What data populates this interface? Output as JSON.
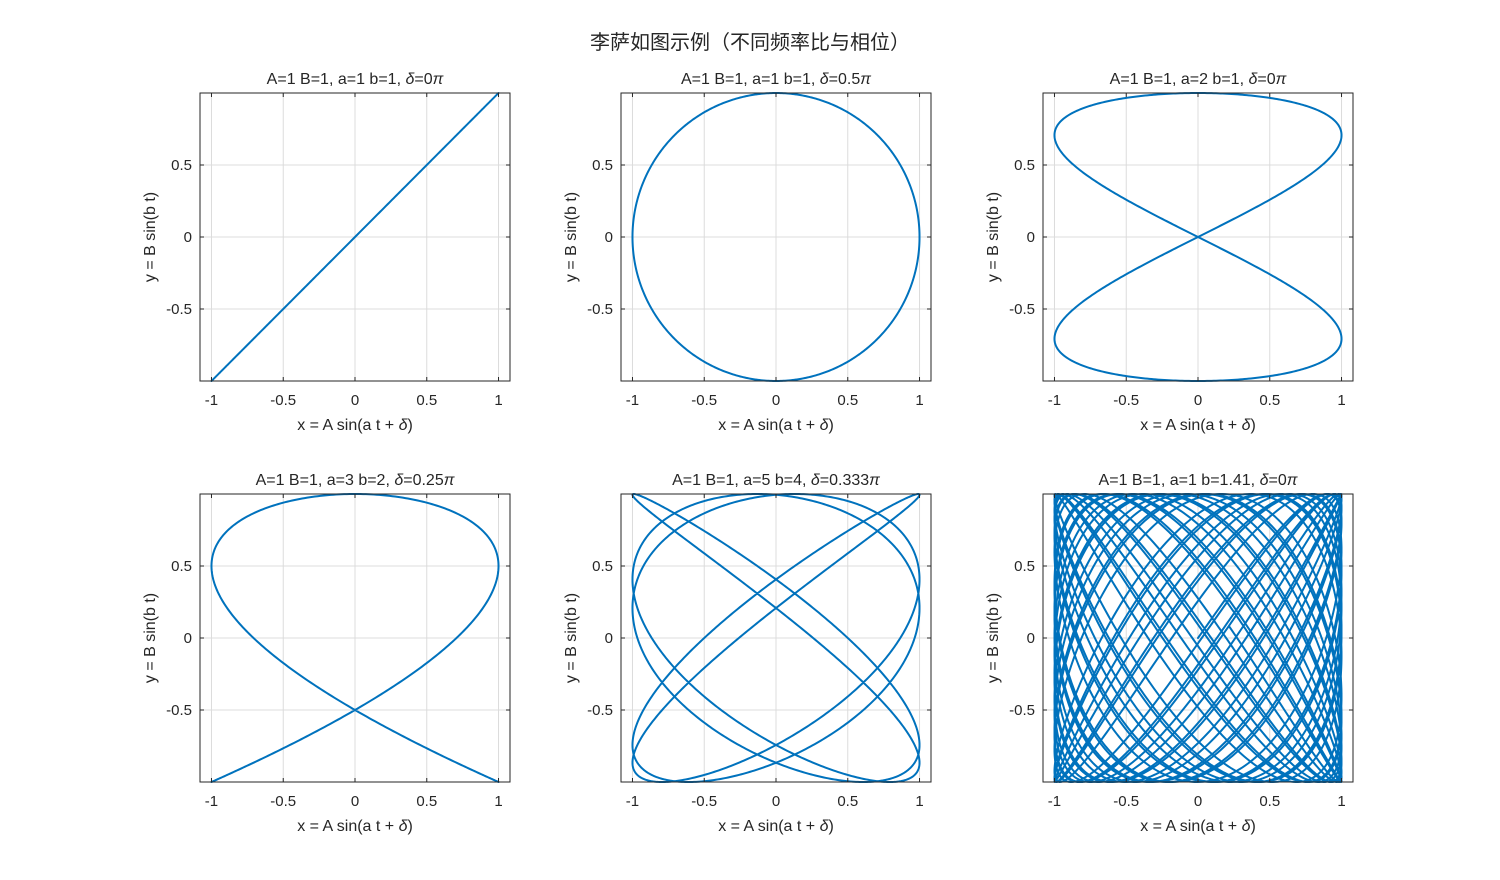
{
  "figure": {
    "title": "李萨如图示例（不同频率比与相位）",
    "line_color": "#0072BD"
  },
  "chart_data": [
    {
      "type": "line",
      "title": "A=1 B=1, a=1 b=1, δ=0π",
      "title_parts": [
        "A=1 B=1, a=1 b=1, ",
        "δ",
        "=0",
        "π"
      ],
      "xlabel_parts": [
        "x = A sin(a t + ",
        "δ",
        ")"
      ],
      "ylabel": "y = B sin(b t)",
      "params": {
        "A": 1,
        "B": 1,
        "a": 1,
        "b": 1,
        "delta_over_pi": 0
      },
      "t_range": [
        0,
        6.2832
      ],
      "samples": 600,
      "xlim": [
        -1.08,
        1.08
      ],
      "ylim": [
        -1,
        1
      ],
      "xticks": [
        -1,
        -0.5,
        0,
        0.5,
        1
      ],
      "xtick_labels": [
        "-1",
        "-0.5",
        "0",
        "0.5",
        "1"
      ],
      "yticks": [
        -0.5,
        0,
        0.5
      ],
      "ytick_labels": [
        "-0.5",
        "0",
        "0.5"
      ],
      "grid": true
    },
    {
      "type": "line",
      "title": "A=1 B=1, a=1 b=1, δ=0.5π",
      "title_parts": [
        "A=1 B=1, a=1 b=1, ",
        "δ",
        "=0.5",
        "π"
      ],
      "xlabel_parts": [
        "x = A sin(a t + ",
        "δ",
        ")"
      ],
      "ylabel": "y = B sin(b t)",
      "params": {
        "A": 1,
        "B": 1,
        "a": 1,
        "b": 1,
        "delta_over_pi": 0.5
      },
      "t_range": [
        0,
        6.2832
      ],
      "samples": 600,
      "xlim": [
        -1.08,
        1.08
      ],
      "ylim": [
        -1,
        1
      ],
      "xticks": [
        -1,
        -0.5,
        0,
        0.5,
        1
      ],
      "xtick_labels": [
        "-1",
        "-0.5",
        "0",
        "0.5",
        "1"
      ],
      "yticks": [
        -0.5,
        0,
        0.5
      ],
      "ytick_labels": [
        "-0.5",
        "0",
        "0.5"
      ],
      "grid": true
    },
    {
      "type": "line",
      "title": "A=1 B=1, a=2 b=1, δ=0π",
      "title_parts": [
        "A=1 B=1, a=2 b=1, ",
        "δ",
        "=0",
        "π"
      ],
      "xlabel_parts": [
        "x = A sin(a t + ",
        "δ",
        ")"
      ],
      "ylabel": "y = B sin(b t)",
      "params": {
        "A": 1,
        "B": 1,
        "a": 2,
        "b": 1,
        "delta_over_pi": 0
      },
      "t_range": [
        0,
        6.2832
      ],
      "samples": 800,
      "xlim": [
        -1.08,
        1.08
      ],
      "ylim": [
        -1,
        1
      ],
      "xticks": [
        -1,
        -0.5,
        0,
        0.5,
        1
      ],
      "xtick_labels": [
        "-1",
        "-0.5",
        "0",
        "0.5",
        "1"
      ],
      "yticks": [
        -0.5,
        0,
        0.5
      ],
      "ytick_labels": [
        "-0.5",
        "0",
        "0.5"
      ],
      "grid": true
    },
    {
      "type": "line",
      "title": "A=1 B=1, a=3 b=2, δ=0.25π",
      "title_parts": [
        "A=1 B=1, a=3 b=2, ",
        "δ",
        "=0.25",
        "π"
      ],
      "xlabel_parts": [
        "x = A sin(a t + ",
        "δ",
        ")"
      ],
      "ylabel": "y = B sin(b t)",
      "params": {
        "A": 1,
        "B": 1,
        "a": 3,
        "b": 2,
        "delta_over_pi": 0.25
      },
      "t_range": [
        0,
        6.2832
      ],
      "samples": 1000,
      "xlim": [
        -1.08,
        1.08
      ],
      "ylim": [
        -1,
        1
      ],
      "xticks": [
        -1,
        -0.5,
        0,
        0.5,
        1
      ],
      "xtick_labels": [
        "-1",
        "-0.5",
        "0",
        "0.5",
        "1"
      ],
      "yticks": [
        -0.5,
        0,
        0.5
      ],
      "ytick_labels": [
        "-0.5",
        "0",
        "0.5"
      ],
      "grid": true
    },
    {
      "type": "line",
      "title": "A=1 B=1, a=5 b=4, δ=0.333π",
      "title_parts": [
        "A=1 B=1, a=5 b=4, ",
        "δ",
        "=0.333",
        "π"
      ],
      "xlabel_parts": [
        "x = A sin(a t + ",
        "δ",
        ")"
      ],
      "ylabel": "y = B sin(b t)",
      "params": {
        "A": 1,
        "B": 1,
        "a": 5,
        "b": 4,
        "delta_over_pi": 0.3333
      },
      "t_range": [
        0,
        6.2832
      ],
      "samples": 2000,
      "xlim": [
        -1.08,
        1.08
      ],
      "ylim": [
        -1,
        1
      ],
      "xticks": [
        -1,
        -0.5,
        0,
        0.5,
        1
      ],
      "xtick_labels": [
        "-1",
        "-0.5",
        "0",
        "0.5",
        "1"
      ],
      "yticks": [
        -0.5,
        0,
        0.5
      ],
      "ytick_labels": [
        "-0.5",
        "0",
        "0.5"
      ],
      "grid": true
    },
    {
      "type": "line",
      "title": "A=1 B=1, a=1 b=1.41, δ=0π",
      "title_parts": [
        "A=1 B=1, a=1 b=1.41, ",
        "δ",
        "=0",
        "π"
      ],
      "xlabel_parts": [
        "x = A sin(a t + ",
        "δ",
        ")"
      ],
      "ylabel": "y = B sin(b t)",
      "params": {
        "A": 1,
        "B": 1,
        "a": 1,
        "b": 1.4142,
        "delta_over_pi": 0
      },
      "t_range": [
        0,
        160
      ],
      "samples": 8000,
      "xlim": [
        -1.08,
        1.08
      ],
      "ylim": [
        -1,
        1
      ],
      "xticks": [
        -1,
        -0.5,
        0,
        0.5,
        1
      ],
      "xtick_labels": [
        "-1",
        "-0.5",
        "0",
        "0.5",
        "1"
      ],
      "yticks": [
        -0.5,
        0,
        0.5
      ],
      "ytick_labels": [
        "-0.5",
        "0",
        "0.5"
      ],
      "grid": true
    }
  ]
}
